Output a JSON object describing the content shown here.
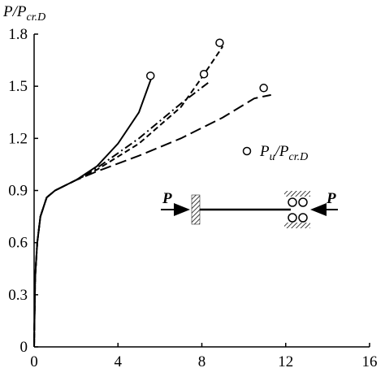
{
  "chart_data": {
    "type": "line",
    "ylabel_parts": [
      "P/P",
      "cr.D"
    ],
    "xlim": [
      0,
      16
    ],
    "ylim": [
      0,
      1.8
    ],
    "xticks": [
      0,
      4,
      8,
      12,
      16
    ],
    "yticks": [
      0,
      0.3,
      0.6,
      0.9,
      1.2,
      1.5,
      1.8
    ],
    "series": [
      {
        "color": "#000",
        "dash": "solid",
        "x": [
          0,
          0.05,
          0.15,
          0.3,
          0.6,
          1,
          2,
          3,
          4,
          5,
          5.6
        ],
        "values": [
          0,
          0.4,
          0.6,
          0.75,
          0.86,
          0.9,
          0.96,
          1.04,
          1.17,
          1.35,
          1.55
        ]
      },
      {
        "color": "#000",
        "dash": "dashdot",
        "x": [
          0,
          0.05,
          0.15,
          0.3,
          0.6,
          1,
          2,
          3,
          5,
          7,
          8.3
        ],
        "values": [
          0,
          0.4,
          0.6,
          0.75,
          0.86,
          0.9,
          0.96,
          1.03,
          1.2,
          1.4,
          1.52
        ]
      },
      {
        "color": "#000",
        "dash": "dashed",
        "x": [
          0,
          0.05,
          0.15,
          0.3,
          0.6,
          1,
          2,
          3,
          5,
          7,
          8,
          9
        ],
        "values": [
          0,
          0.4,
          0.6,
          0.75,
          0.86,
          0.9,
          0.96,
          1.02,
          1.17,
          1.38,
          1.55,
          1.73
        ]
      },
      {
        "color": "#000",
        "dash": "longdash",
        "x": [
          0,
          0.05,
          0.15,
          0.3,
          0.6,
          1,
          2,
          3,
          5,
          7,
          9,
          10.5,
          11.3
        ],
        "values": [
          0,
          0.4,
          0.6,
          0.75,
          0.86,
          0.9,
          0.96,
          1.01,
          1.1,
          1.2,
          1.32,
          1.43,
          1.45
        ]
      }
    ],
    "points": {
      "marker": "circle",
      "name_parts": [
        "P",
        "u",
        "/P",
        "cr.D"
      ],
      "x": [
        5.55,
        8.1,
        8.85,
        10.95
      ],
      "values": [
        1.56,
        1.57,
        1.75,
        1.49
      ]
    }
  },
  "diagram": {
    "left_label": "P",
    "right_label": "P"
  }
}
